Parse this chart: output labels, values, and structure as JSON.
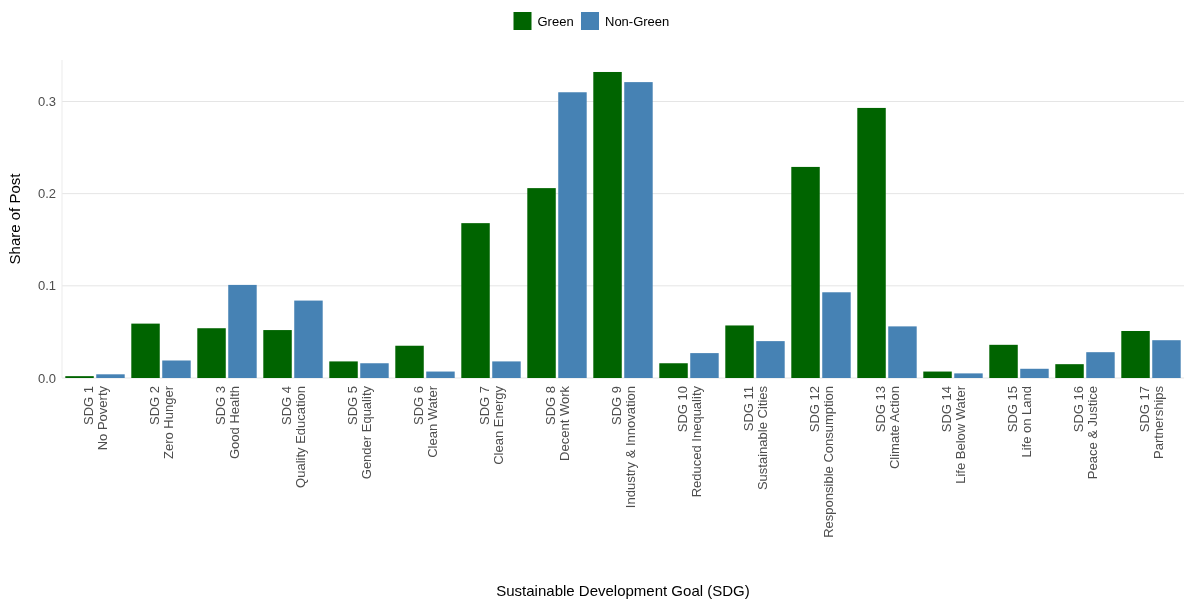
{
  "chart_data": {
    "type": "bar",
    "xlabel": "Sustainable Development Goal (SDG)",
    "ylabel": "Share of Post",
    "categories": [
      "SDG 1\nNo Poverty",
      "SDG 2\nZero Hunger",
      "SDG 3\nGood Health",
      "SDG 4\nQuality Education",
      "SDG 5\nGender Equality",
      "SDG 6\nClean Water",
      "SDG 7\nClean Energy",
      "SDG 8\nDecent Work",
      "SDG 9\nIndustry & Innovation",
      "SDG 10\nReduced Inequality",
      "SDG 11\nSustainable Cities",
      "SDG 12\nResponsible Consumption",
      "SDG 13\nClimate Action",
      "SDG 14\nLife Below Water",
      "SDG 15\nLife on Land",
      "SDG 16\nPeace & Justice",
      "SDG 17\nPartnerships"
    ],
    "series": [
      {
        "name": "Green",
        "color": "#006400",
        "values": [
          0.002,
          0.059,
          0.054,
          0.052,
          0.018,
          0.035,
          0.168,
          0.206,
          0.332,
          0.016,
          0.057,
          0.229,
          0.293,
          0.007,
          0.036,
          0.015,
          0.051
        ]
      },
      {
        "name": "Non-Green",
        "color": "#4682b4",
        "values": [
          0.004,
          0.019,
          0.101,
          0.084,
          0.016,
          0.007,
          0.018,
          0.31,
          0.321,
          0.027,
          0.04,
          0.093,
          0.056,
          0.005,
          0.01,
          0.028,
          0.041
        ]
      }
    ],
    "ylim": [
      0,
      0.345
    ],
    "yticks": [
      {
        "value": 0,
        "label": "0.0"
      },
      {
        "value": 0.1,
        "label": "0.1"
      },
      {
        "value": 0.2,
        "label": "0.2"
      },
      {
        "value": 0.3,
        "label": "0.3"
      }
    ],
    "grid": "y",
    "legend": "top"
  }
}
